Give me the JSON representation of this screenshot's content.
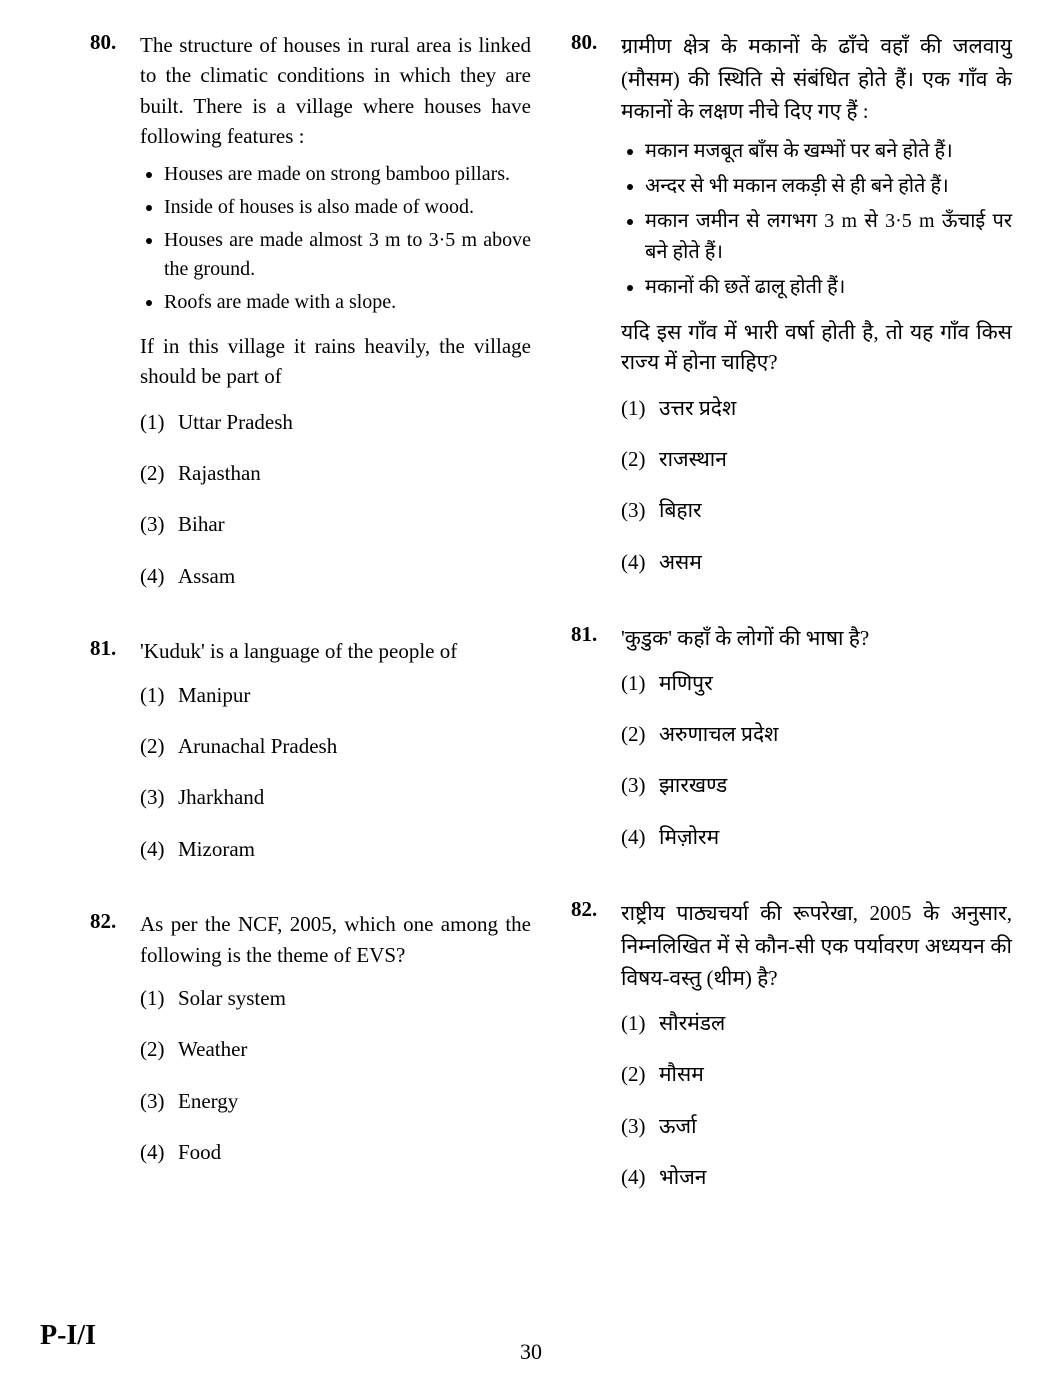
{
  "page_number": "30",
  "paper_code": "P-I/I",
  "colors": {
    "text": "#000000",
    "background": "#ffffff"
  },
  "left": {
    "q80": {
      "num": "80.",
      "intro": "The structure of houses in rural area is linked to the climatic conditions in which they are built. There is a village where houses have following features :",
      "features": [
        "Houses are made on strong bamboo pillars.",
        "Inside of houses is also made of wood.",
        "Houses are made almost 3 m to 3·5 m above the ground.",
        "Roofs are made with a slope."
      ],
      "leadout": "If in this village it rains heavily, the village should be part of",
      "opts": {
        "1": {
          "n": "(1)",
          "t": "Uttar Pradesh"
        },
        "2": {
          "n": "(2)",
          "t": "Rajasthan"
        },
        "3": {
          "n": "(3)",
          "t": "Bihar"
        },
        "4": {
          "n": "(4)",
          "t": "Assam"
        }
      }
    },
    "q81": {
      "num": "81.",
      "intro": "'Kuduk' is a language of the people of",
      "opts": {
        "1": {
          "n": "(1)",
          "t": "Manipur"
        },
        "2": {
          "n": "(2)",
          "t": "Arunachal Pradesh"
        },
        "3": {
          "n": "(3)",
          "t": "Jharkhand"
        },
        "4": {
          "n": "(4)",
          "t": "Mizoram"
        }
      }
    },
    "q82": {
      "num": "82.",
      "intro": "As per the NCF, 2005, which one among the following is the theme of EVS?",
      "opts": {
        "1": {
          "n": "(1)",
          "t": "Solar system"
        },
        "2": {
          "n": "(2)",
          "t": "Weather"
        },
        "3": {
          "n": "(3)",
          "t": "Energy"
        },
        "4": {
          "n": "(4)",
          "t": "Food"
        }
      }
    }
  },
  "right": {
    "q80": {
      "num": "80.",
      "intro": "ग्रामीण क्षेत्र के मकानों के ढाँचे वहाँ की जलवायु (मौसम) की स्थिति से संबंधित होते हैं। एक गाँव के मकानों के लक्षण नीचे दिए गए हैं :",
      "features": [
        "मकान मजबूत बाँस के खम्भों पर बने होते हैं।",
        "अन्दर से भी मकान लकड़ी से ही बने होते हैं।",
        "मकान जमीन से लगभग 3 m से 3·5 m ऊँचाई पर बने होते हैं।",
        "मकानों की छतें ढालू होती हैं।"
      ],
      "leadout": "यदि इस गाँव में भारी वर्षा होती है, तो यह गाँव किस राज्य में होना चाहिए?",
      "opts": {
        "1": {
          "n": "(1)",
          "t": "उत्तर प्रदेश"
        },
        "2": {
          "n": "(2)",
          "t": "राजस्थान"
        },
        "3": {
          "n": "(3)",
          "t": "बिहार"
        },
        "4": {
          "n": "(4)",
          "t": "असम"
        }
      }
    },
    "q81": {
      "num": "81.",
      "intro": "'कुडुक' कहाँ के लोगों की भाषा है?",
      "opts": {
        "1": {
          "n": "(1)",
          "t": "मणिपुर"
        },
        "2": {
          "n": "(2)",
          "t": "अरुणाचल प्रदेश"
        },
        "3": {
          "n": "(3)",
          "t": "झारखण्ड"
        },
        "4": {
          "n": "(4)",
          "t": "मिज़ोरम"
        }
      }
    },
    "q82": {
      "num": "82.",
      "intro": "राष्ट्रीय पाठ्यचर्या की रूपरेखा, 2005 के अनुसार, निम्नलिखित में से कौन-सी एक पर्यावरण अध्ययन की विषय-वस्तु (थीम) है?",
      "opts": {
        "1": {
          "n": "(1)",
          "t": "सौरमंडल"
        },
        "2": {
          "n": "(2)",
          "t": "मौसम"
        },
        "3": {
          "n": "(3)",
          "t": "ऊर्जा"
        },
        "4": {
          "n": "(4)",
          "t": "भोजन"
        }
      }
    }
  }
}
